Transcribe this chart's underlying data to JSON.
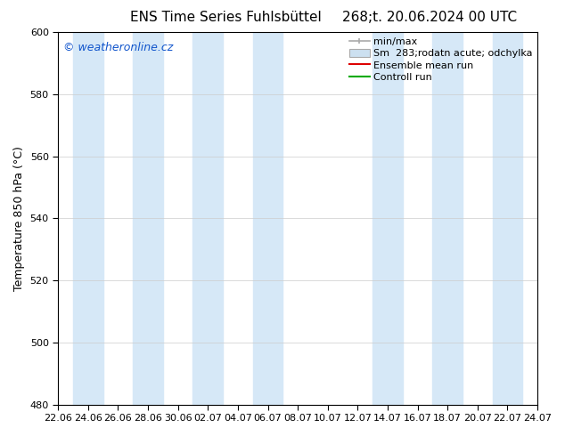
{
  "title": "ENS Time Series Fuhlsbüttel",
  "title2": "268;t. 20.06.2024 00 UTC",
  "ylabel": "Temperature 850 hPa (°C)",
  "watermark": "© weatheronline.cz",
  "ylim": [
    480,
    600
  ],
  "yticks": [
    480,
    500,
    520,
    540,
    560,
    580,
    600
  ],
  "x_labels": [
    "22.06",
    "24.06",
    "26.06",
    "28.06",
    "30.06",
    "02.07",
    "04.07",
    "06.07",
    "08.07",
    "10.07",
    "12.07",
    "14.07",
    "16.07",
    "18.07",
    "20.07",
    "22.07",
    "24.07"
  ],
  "n_ticks": 17,
  "bg_color": "#ffffff",
  "plot_bg_color": "#ffffff",
  "band_color": "#d6e8f7",
  "band_indices": [
    1,
    3,
    5,
    7,
    11,
    13,
    15
  ],
  "legend_labels": [
    "min/max",
    "Sm  283;rodatn acute; odchylka",
    "Ensemble mean run",
    "Controll run"
  ],
  "minmax_color": "#aaaaaa",
  "sm_color": "#cce0f0",
  "sm_edge_color": "#aaaaaa",
  "ensemble_color": "#dd0000",
  "control_color": "#00aa00",
  "title_fontsize": 11,
  "label_fontsize": 9,
  "tick_fontsize": 8,
  "legend_fontsize": 8,
  "watermark_fontsize": 9,
  "watermark_color": "#1155cc"
}
